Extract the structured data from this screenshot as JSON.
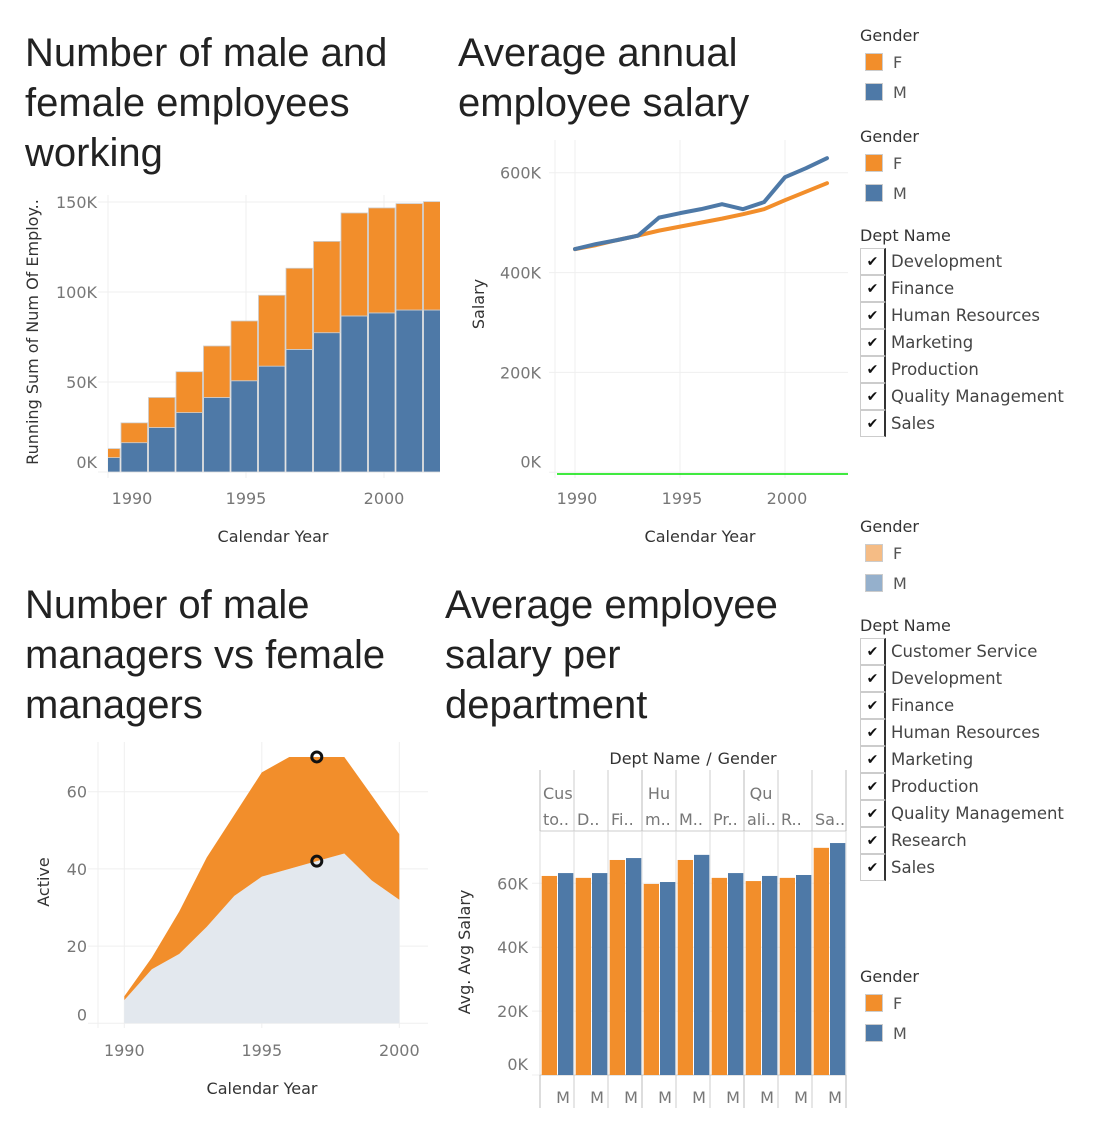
{
  "colors": {
    "female": "#f28e2b",
    "male": "#4e79a7",
    "female_light": "#f5bc85",
    "male_light": "#95b0cc",
    "male_area_dimmed": "#e3e8ee",
    "reference_line": "#00e400",
    "grid": "#efefef"
  },
  "legends": [
    {
      "title": "Gender",
      "items": [
        {
          "label": "F",
          "color": "#f28e2b"
        },
        {
          "label": "M",
          "color": "#4e79a7"
        }
      ]
    },
    {
      "title": "Gender",
      "items": [
        {
          "label": "F",
          "color": "#f28e2b"
        },
        {
          "label": "M",
          "color": "#4e79a7"
        }
      ]
    },
    {
      "title": "Gender",
      "items": [
        {
          "label": "F",
          "color": "#f5bc85"
        },
        {
          "label": "M",
          "color": "#95b0cc"
        }
      ]
    },
    {
      "title": "Gender",
      "items": [
        {
          "label": "F",
          "color": "#f28e2b"
        },
        {
          "label": "M",
          "color": "#4e79a7"
        }
      ]
    }
  ],
  "filters": [
    {
      "title": "Dept Name",
      "items": [
        {
          "label": "Development",
          "checked": true
        },
        {
          "label": "Finance",
          "checked": true
        },
        {
          "label": "Human Resources",
          "checked": true
        },
        {
          "label": "Marketing",
          "checked": true
        },
        {
          "label": "Production",
          "checked": true
        },
        {
          "label": "Quality Management",
          "checked": true
        },
        {
          "label": "Sales",
          "checked": true
        }
      ]
    },
    {
      "title": "Dept Name",
      "items": [
        {
          "label": "Customer Service",
          "checked": true
        },
        {
          "label": "Development",
          "checked": true
        },
        {
          "label": "Finance",
          "checked": true
        },
        {
          "label": "Human Resources",
          "checked": true
        },
        {
          "label": "Marketing",
          "checked": true
        },
        {
          "label": "Production",
          "checked": true
        },
        {
          "label": "Quality Management",
          "checked": true
        },
        {
          "label": "Research",
          "checked": true
        },
        {
          "label": "Sales",
          "checked": true
        }
      ]
    }
  ],
  "chart_data": [
    {
      "type": "bar",
      "stacked": true,
      "title": "Number of male and female employees working",
      "xlabel": "Calendar Year",
      "ylabel": "Running Sum of Num Of Employ..",
      "x_ticks": [
        "1990",
        "1995",
        "2000"
      ],
      "y_ticks": [
        "0K",
        "50K",
        "100K",
        "150K"
      ],
      "y_tick_values": [
        0,
        50000,
        100000,
        150000
      ],
      "ylim": [
        0,
        150000
      ],
      "grid": true,
      "categories": [
        1990,
        1991,
        1992,
        1993,
        1994,
        1995,
        1996,
        1997,
        1998,
        1999,
        2000,
        2001,
        2002
      ],
      "series": [
        {
          "name": "M",
          "values": [
            8000,
            16300,
            24700,
            33000,
            41400,
            50700,
            58800,
            68100,
            77400,
            86700,
            88400,
            90000,
            90000
          ]
        },
        {
          "name": "F",
          "values": [
            5000,
            11000,
            16700,
            22700,
            28600,
            33200,
            39400,
            45100,
            50700,
            57200,
            58300,
            59100,
            60200
          ]
        }
      ]
    },
    {
      "type": "line",
      "title": "Average annual employee salary",
      "xlabel": "Calendar Year",
      "ylabel": "Salary",
      "x_ticks": [
        1990,
        1995,
        2000
      ],
      "y_ticks": [
        "0K",
        "200K",
        "400K",
        "600K"
      ],
      "y_tick_values": [
        0,
        200000,
        400000,
        600000
      ],
      "ylim": [
        0,
        600000
      ],
      "reference_line_at": 0,
      "grid": true,
      "x": [
        1990,
        1991,
        1992,
        1993,
        1994,
        1995,
        1996,
        1997,
        1998,
        1999,
        2000,
        2001,
        2002
      ],
      "series": [
        {
          "name": "M",
          "values": [
            447000,
            457000,
            465000,
            474000,
            510000,
            519000,
            527000,
            537000,
            527000,
            541000,
            591000,
            609000,
            629000
          ]
        },
        {
          "name": "F",
          "values": [
            447000,
            455000,
            465000,
            474000,
            484000,
            492000,
            500000,
            508000,
            517000,
            527000,
            545000,
            562000,
            579000
          ]
        }
      ]
    },
    {
      "type": "area",
      "stacked": true,
      "title": "Number of male managers vs female managers",
      "xlabel": "Calendar Year",
      "ylabel": "Active",
      "x_ticks": [
        1990,
        1995,
        2000
      ],
      "y_ticks": [
        "0",
        "20",
        "40",
        "60"
      ],
      "y_tick_values": [
        0,
        20,
        40,
        60
      ],
      "grid": true,
      "x": [
        1990,
        1991,
        1992,
        1993,
        1994,
        1995,
        1996,
        1997,
        1998,
        1999,
        2000
      ],
      "series": [
        {
          "name": "M",
          "values": [
            6,
            14,
            18,
            25,
            33,
            38,
            40,
            42,
            44,
            37,
            32
          ],
          "highlighted": false
        },
        {
          "name": "F",
          "values": [
            1,
            3,
            11,
            18,
            21,
            27,
            29,
            27,
            25,
            22,
            17
          ],
          "highlighted": true
        }
      ],
      "selected_x": 1997
    },
    {
      "type": "bar",
      "title": "Average employee salary per department",
      "header_title": "Dept Name",
      "header_sep": "/",
      "header_title2": "Gender",
      "ylabel": "Avg. Avg Salary",
      "y_ticks": [
        "0K",
        "20K",
        "40K",
        "60K"
      ],
      "y_tick_values": [
        0,
        20000,
        40000,
        60000
      ],
      "categories": [
        "Customer Service",
        "Development",
        "Finance",
        "Human Resources",
        "Marketing",
        "Production",
        "Quality Management",
        "Research",
        "Sales"
      ],
      "header_labels": [
        [
          "Cus",
          "to.."
        ],
        [
          "",
          "D.."
        ],
        [
          "",
          "Fi.."
        ],
        [
          "Hu",
          "m.."
        ],
        [
          "",
          "M.."
        ],
        [
          "",
          "Pr.."
        ],
        [
          "Qu",
          "ali.."
        ],
        [
          "",
          "R.."
        ],
        [
          "",
          "Sa.."
        ]
      ],
      "gender_labels": [
        "M",
        "M",
        "M",
        "M",
        "M",
        "M",
        "M",
        "M",
        "M"
      ],
      "series": [
        {
          "name": "F",
          "values": [
            62300,
            61700,
            67300,
            59800,
            67300,
            61700,
            60700,
            61700,
            71100
          ]
        },
        {
          "name": "M",
          "values": [
            63200,
            63200,
            67900,
            60400,
            68900,
            63200,
            62300,
            62600,
            72600
          ]
        }
      ]
    }
  ]
}
